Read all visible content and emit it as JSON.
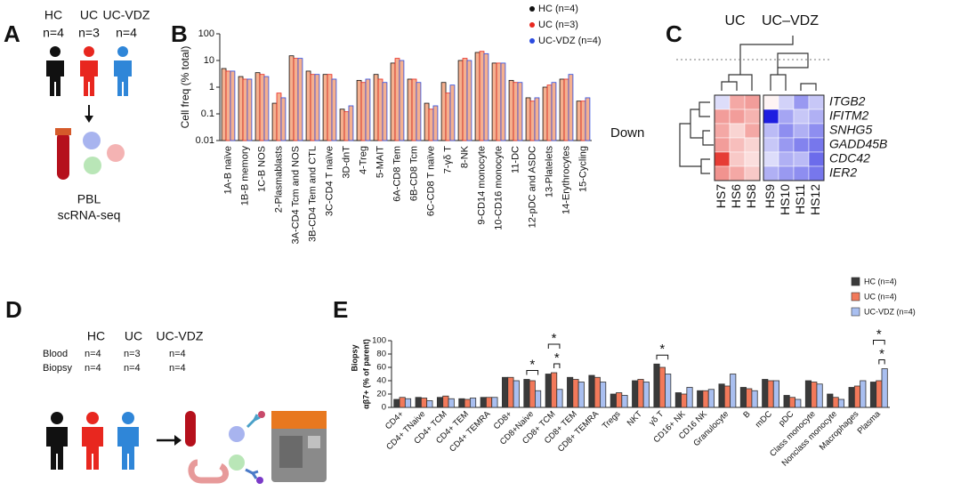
{
  "panel_labels": [
    "A",
    "B",
    "C",
    "D",
    "E"
  ],
  "panel_a": {
    "groups": [
      "HC",
      "UC",
      "UC-VDZ"
    ],
    "n": [
      "n=4",
      "n=3",
      "n=4"
    ],
    "caption": [
      "PBL",
      "scRNA-seq"
    ]
  },
  "panel_d": {
    "columns": [
      "HC",
      "UC",
      "UC-VDZ"
    ],
    "rows": [
      {
        "label": "Blood",
        "values": [
          "n=4",
          "n=3",
          "n=4"
        ]
      },
      {
        "label": "Biopsy",
        "values": [
          "n=4",
          "n=4",
          "n=4"
        ]
      }
    ]
  },
  "chart_data": [
    {
      "type": "bar",
      "log_scale": true,
      "ylabel": "Cell freq (% total)",
      "categories": [
        "1A-B naïve",
        "1B-B memory",
        "1C-B NOS",
        "2-Plasmablasts",
        "3A-CD4 Tcm and NOS",
        "3B-CD4 Tem and CTL",
        "3C-CD4 T naïve",
        "3D-dnT",
        "4-Treg",
        "5-MAIT",
        "6A-CD8 Tem",
        "6B-CD8 Tcm",
        "6C-CD8 T naïve",
        "7-γδ T",
        "8-NK",
        "9-CD14 monocyte",
        "10-CD16 monocyte",
        "11-DC",
        "12-pDC and ASDC",
        "13-Platelets",
        "14-Erythrocytes",
        "15-Cycling"
      ],
      "series": [
        {
          "name": "HC (n=4)",
          "color": "#111111",
          "fill": "#f5b08f",
          "values": [
            5,
            2.5,
            3.5,
            0.25,
            15,
            4,
            3,
            0.15,
            1.8,
            3,
            8,
            2,
            0.25,
            1.5,
            10,
            20,
            8,
            1.8,
            0.4,
            1,
            2,
            0.3
          ]
        },
        {
          "name": "UC (n=3)",
          "color": "#e8271f",
          "fill": "#f5b08f",
          "values": [
            4,
            2,
            3,
            0.6,
            12,
            3,
            3,
            0.12,
            1.5,
            2,
            12,
            2,
            0.15,
            0.6,
            12,
            22,
            8,
            1.5,
            0.3,
            1.2,
            2,
            0.3
          ]
        },
        {
          "name": "UC-VDZ (n=4)",
          "color": "#2b4be0",
          "fill": "#f5b08f",
          "values": [
            4,
            2,
            2.5,
            0.4,
            12,
            3,
            2,
            0.2,
            2,
            1.5,
            10,
            1.5,
            0.2,
            1.2,
            10,
            18,
            8,
            1.5,
            0.4,
            1.5,
            3,
            0.4
          ]
        }
      ],
      "ylim": [
        0.01,
        100
      ],
      "yticks": [
        0.01,
        0.1,
        1,
        10,
        100
      ],
      "legend": "top-right"
    },
    {
      "type": "heatmap",
      "column_groups": [
        "UC",
        "UC–VDZ"
      ],
      "row_group": "Down",
      "rows": [
        "ITGB2",
        "IFITM2",
        "SNHG5",
        "GADD45B",
        "CDC42",
        "IER2"
      ],
      "columns": [
        "HS7",
        "HS6",
        "HS8",
        "HS9",
        "HS10",
        "HS11",
        "HS12"
      ],
      "values": [
        [
          -0.3,
          0.8,
          0.9,
          0.1,
          -0.4,
          -0.9,
          -0.5
        ],
        [
          0.9,
          0.9,
          0.7,
          -2,
          -0.8,
          -0.5,
          -0.7
        ],
        [
          0.8,
          0.4,
          0.8,
          -0.6,
          -1,
          -0.7,
          -1
        ],
        [
          0.9,
          0.6,
          0.4,
          -0.5,
          -0.9,
          -1.1,
          -1.2
        ],
        [
          1.8,
          0.5,
          0.3,
          -0.3,
          -0.7,
          -0.6,
          -1.3
        ],
        [
          1,
          0.8,
          0.5,
          -0.7,
          -0.9,
          -1,
          -1.2
        ]
      ],
      "high_color": "#e3261e",
      "low_color": "#1d1de0",
      "mid_color": "#ffffff",
      "zlim": [
        -2,
        2
      ]
    },
    {
      "type": "bar",
      "log_scale": false,
      "ylabel": "αβ7+ (% of parent)",
      "ylabel_top": "Biopsy",
      "categories": [
        "CD4+",
        "CD4+ TNaive",
        "CD4+ TCM",
        "CD4+ TEM",
        "CD4+ TEMRA",
        "CD8+",
        "CD8+Naive",
        "CD8+ TCM",
        "CD8+ TEM",
        "CD8+ TEMRA",
        "Tregs",
        "NKT",
        "γδ T",
        "CD16+ NK",
        "CD16 NK",
        "Granulocyte",
        "B",
        "mDC",
        "pDC",
        "Class monocyte",
        "Nonclass monocyte",
        "Macrophages",
        "Plasma"
      ],
      "series": [
        {
          "name": "HC (n=4)",
          "color": "#3a3a3a",
          "values": [
            12,
            15,
            15,
            13,
            15,
            45,
            42,
            50,
            45,
            48,
            20,
            40,
            65,
            22,
            25,
            35,
            30,
            42,
            18,
            40,
            20,
            30,
            38
          ]
        },
        {
          "name": "UC (n=4)",
          "color": "#f2795a",
          "values": [
            15,
            14,
            17,
            12,
            15,
            45,
            40,
            52,
            42,
            45,
            22,
            42,
            60,
            20,
            25,
            32,
            28,
            40,
            15,
            38,
            15,
            32,
            40
          ]
        },
        {
          "name": "UC-VDZ (n=4)",
          "color": "#a9bff0",
          "values": [
            13,
            10,
            13,
            14,
            15,
            40,
            25,
            27,
            38,
            38,
            18,
            38,
            50,
            30,
            27,
            50,
            25,
            40,
            12,
            35,
            12,
            40,
            58
          ]
        }
      ],
      "ylim": [
        0,
        100
      ],
      "yticks": [
        0,
        20,
        40,
        60,
        80,
        100
      ],
      "legend": "top-right",
      "significance": [
        {
          "category": "CD8+Naive",
          "between": [
            "HC (n=4)",
            "UC-VDZ (n=4)"
          ],
          "label": "*"
        },
        {
          "category": "CD8+ TCM",
          "between": [
            "UC (n=4)",
            "UC-VDZ (n=4)"
          ],
          "label": "*"
        },
        {
          "category": "CD8+ TCM",
          "between": [
            "HC (n=4)",
            "UC-VDZ (n=4)"
          ],
          "label": "*"
        },
        {
          "category": "γδ T",
          "between": [
            "HC (n=4)",
            "UC-VDZ (n=4)"
          ],
          "label": "*"
        },
        {
          "category": "Plasma",
          "between": [
            "UC (n=4)",
            "UC-VDZ (n=4)"
          ],
          "label": "*"
        },
        {
          "category": "Plasma",
          "between": [
            "HC (n=4)",
            "UC-VDZ (n=4)"
          ],
          "label": "*"
        }
      ]
    }
  ]
}
